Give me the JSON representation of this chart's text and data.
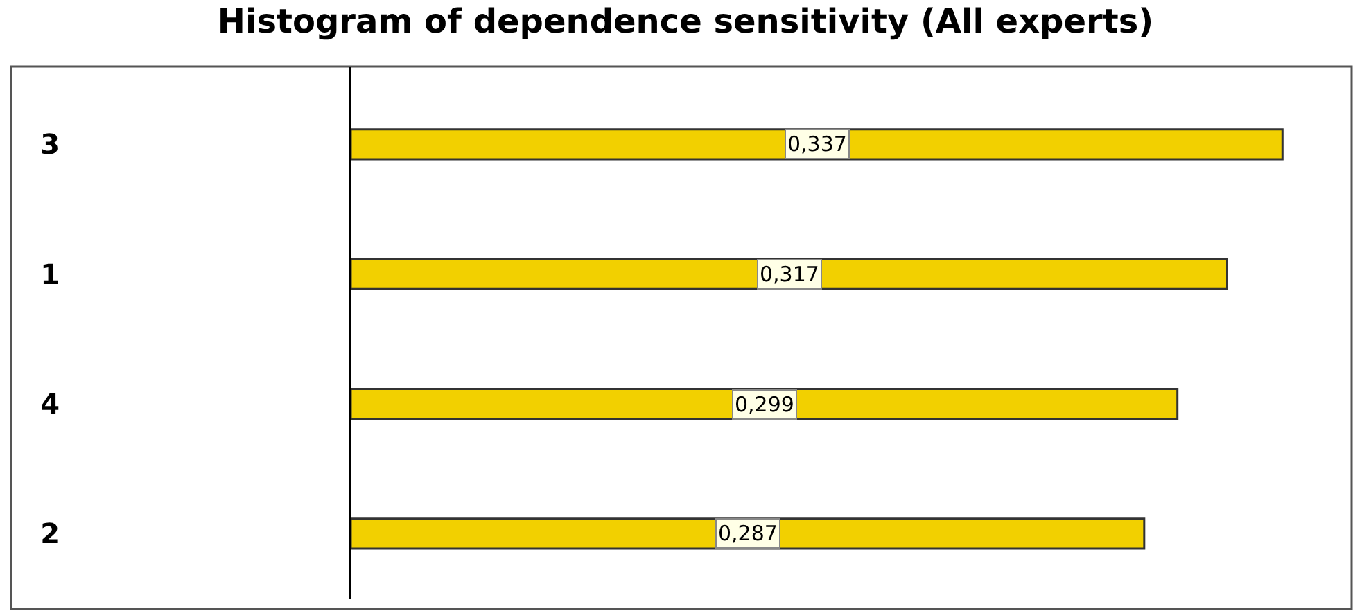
{
  "chart_data": {
    "type": "bar",
    "orientation": "horizontal",
    "title": "Histogram of dependence sensitivity (All experts)",
    "categories": [
      "3",
      "1",
      "4",
      "2"
    ],
    "values": [
      0.337,
      0.317,
      0.299,
      0.287
    ],
    "value_labels": [
      "0,337",
      "0,317",
      "0,299",
      "0,287"
    ],
    "color": "#f2d000",
    "xlim": [
      0,
      0.362
    ],
    "tick_labels": "y"
  }
}
